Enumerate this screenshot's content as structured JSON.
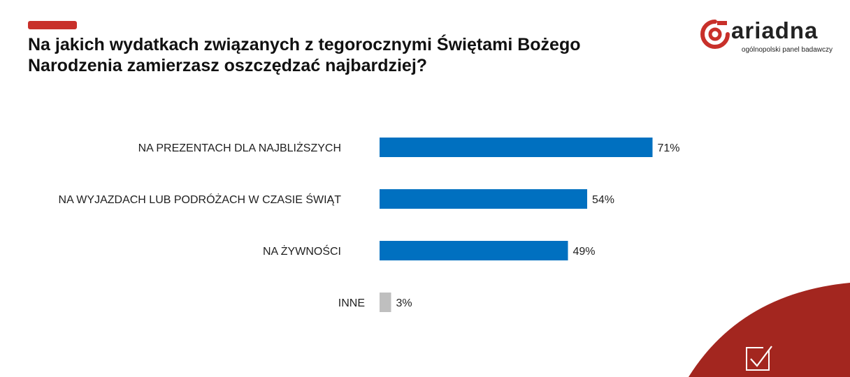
{
  "header": {
    "title": "Na jakich wydatkach związanych z tegorocznymi Świętami Bożego Narodzenia zamierzasz oszczędzać najbardziej?"
  },
  "logo": {
    "word": "ariadna",
    "tagline": "ogólnopolski panel badawczy"
  },
  "colors": {
    "accent": "#c8302a",
    "bar_primary": "#0070c0",
    "bar_other": "#bfbfbf",
    "corner": "#a3261f"
  },
  "chart_data": {
    "type": "bar",
    "orientation": "horizontal",
    "categories": [
      "NA PREZENTACH DLA NAJBLIŻSZYCH",
      "NA WYJAZDACH LUB PODRÓŻACH W CZASIE ŚWIĄT",
      "NA ŻYWNOŚCI",
      "INNE"
    ],
    "values": [
      71,
      54,
      49,
      3
    ],
    "value_labels": [
      "71%",
      "54%",
      "49%",
      "3%"
    ],
    "unit": "%",
    "xlim": [
      0,
      100
    ],
    "grid": false,
    "legend": "none"
  }
}
